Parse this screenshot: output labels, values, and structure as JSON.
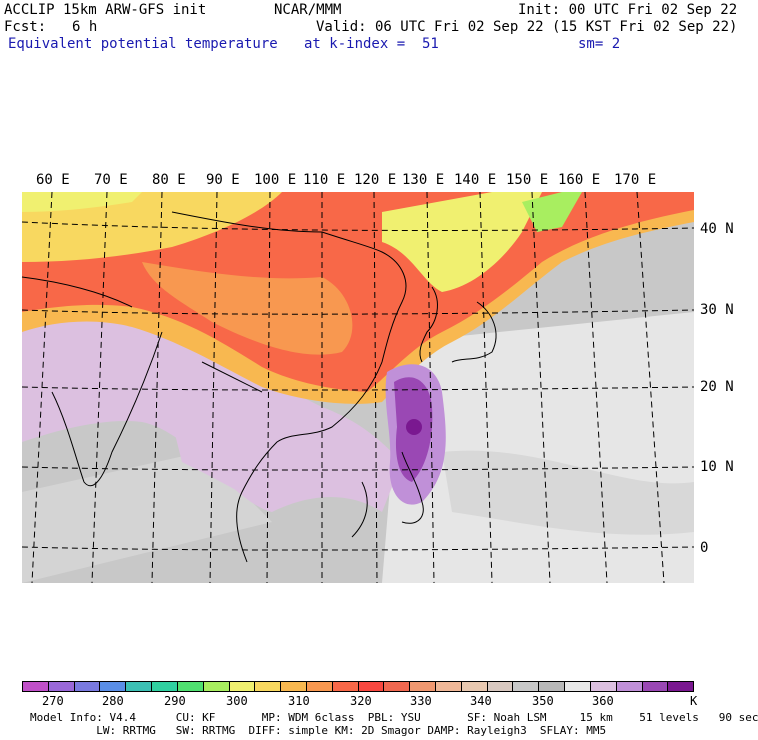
{
  "header": {
    "model": "ACCLIP 15km ARW-GFS init",
    "center": "NCAR/MMM",
    "init": "Init: 00 UTC Fri 02 Sep 22",
    "fcst_label": "Fcst:",
    "fcst_value": "6 h",
    "valid": "Valid: 06 UTC Fri 02 Sep 22 (15 KST Fri 02 Sep 22)",
    "field": "Equivalent potential temperature",
    "level": "at k-index =  51",
    "smoothing": "sm= 2"
  },
  "map": {
    "lon_labels": [
      "60 E",
      "70 E",
      "80 E",
      "90 E",
      "100 E",
      "110 E",
      "120 E",
      "130 E",
      "140 E",
      "150 E",
      "160 E",
      "170 E"
    ],
    "lat_labels": [
      "40 N",
      "30 N",
      "20 N",
      "10 N",
      "0"
    ]
  },
  "colorbar": {
    "colors": [
      "#c050c8",
      "#9a68d8",
      "#7a7ae0",
      "#5a8ee6",
      "#3cc0b4",
      "#30d0a0",
      "#50e070",
      "#a8ee60",
      "#f0f070",
      "#f8d860",
      "#f8b850",
      "#f89850",
      "#f86848",
      "#f84840",
      "#f06850",
      "#f09870",
      "#f0b898",
      "#e8c8b0",
      "#d8c8c0",
      "#c8c8c8",
      "#b8b8b8",
      "#e8e8e8",
      "#dcc0e0",
      "#c090d8",
      "#9a48b4",
      "#7a1890"
    ],
    "ticks": [
      "270",
      "280",
      "290",
      "300",
      "310",
      "320",
      "330",
      "340",
      "350",
      "360"
    ],
    "unit": "K"
  },
  "footer": {
    "line1": "Model Info: V4.4      CU: KF       MP: WDM 6class  PBL: YSU       SF: Noah LSM     15 km    51 levels   90 sec",
    "line2": "          LW: RRTMG   SW: RRTMG  DIFF: simple KM: 2D Smagor DAMP: Rayleigh3  SFLAY: MM5"
  }
}
